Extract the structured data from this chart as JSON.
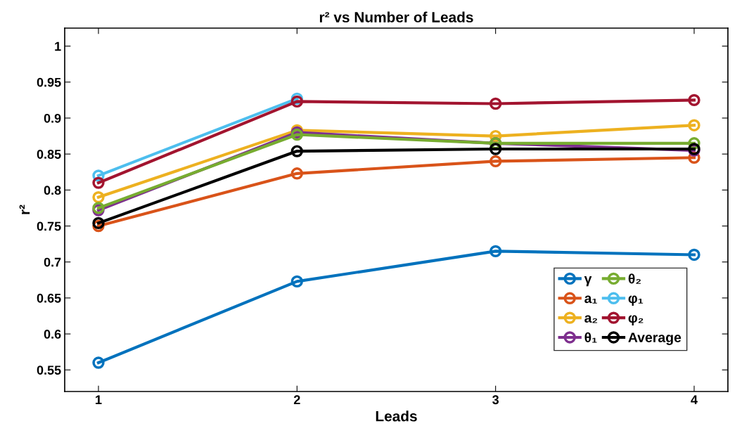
{
  "chart_data": {
    "type": "line",
    "title": "r² vs Number of Leads",
    "xlabel": "Leads",
    "ylabel": "r²",
    "x": [
      1,
      2,
      3,
      4
    ],
    "xlim": [
      0.83,
      4.17
    ],
    "xticks": [
      1,
      2,
      3,
      4
    ],
    "ylim": [
      0.52,
      1.025
    ],
    "yticks": [
      0.55,
      0.6,
      0.65,
      0.7,
      0.75,
      0.8,
      0.85,
      0.9,
      0.95,
      1
    ],
    "marker": "circle",
    "line_style": "solid",
    "grid": false,
    "legend": "bottom right",
    "series": [
      {
        "name": "γ",
        "color": "#0072bd",
        "values": [
          0.56,
          0.673,
          0.715,
          0.71
        ]
      },
      {
        "name": "a₁",
        "color": "#d95319",
        "values": [
          0.75,
          0.823,
          0.84,
          0.845
        ]
      },
      {
        "name": "a₂",
        "color": "#edb120",
        "values": [
          0.79,
          0.883,
          0.875,
          0.89
        ]
      },
      {
        "name": "θ₁",
        "color": "#7e2f8e",
        "values": [
          0.772,
          0.88,
          0.865,
          0.855
        ]
      },
      {
        "name": "θ₂",
        "color": "#77ac30",
        "values": [
          0.775,
          0.877,
          0.865,
          0.865
        ]
      },
      {
        "name": "φ₁",
        "color": "#4dbeee",
        "values": [
          0.82,
          0.927,
          null,
          null
        ]
      },
      {
        "name": "φ₂",
        "color": "#a2142f",
        "values": [
          0.81,
          0.923,
          0.92,
          0.925
        ]
      },
      {
        "name": "Average",
        "color": "#000000",
        "values": [
          0.754,
          0.854,
          0.857,
          0.857
        ]
      }
    ]
  }
}
